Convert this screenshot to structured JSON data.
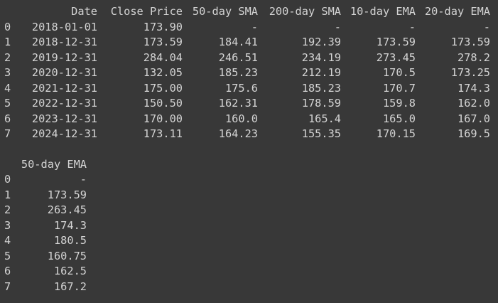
{
  "table1": {
    "columns": [
      "Date",
      "Close Price",
      "50-day SMA",
      "200-day SMA",
      "10-day EMA",
      "20-day EMA"
    ],
    "rows": [
      {
        "index": "0",
        "cells": [
          "2018-01-01",
          "173.90",
          "-",
          "-",
          "-",
          "-"
        ]
      },
      {
        "index": "1",
        "cells": [
          "2018-12-31",
          "173.59",
          "184.41",
          "192.39",
          "173.59",
          "173.59"
        ]
      },
      {
        "index": "2",
        "cells": [
          "2019-12-31",
          "284.04",
          "246.51",
          "234.19",
          "273.45",
          "278.2"
        ]
      },
      {
        "index": "3",
        "cells": [
          "2020-12-31",
          "132.05",
          "185.23",
          "212.19",
          "170.5",
          "173.25"
        ]
      },
      {
        "index": "4",
        "cells": [
          "2021-12-31",
          "175.00",
          "175.6",
          "185.23",
          "170.7",
          "174.3"
        ]
      },
      {
        "index": "5",
        "cells": [
          "2022-12-31",
          "150.50",
          "162.31",
          "178.59",
          "159.8",
          "162.0"
        ]
      },
      {
        "index": "6",
        "cells": [
          "2023-12-31",
          "170.00",
          "160.0",
          "165.4",
          "165.0",
          "167.0"
        ]
      },
      {
        "index": "7",
        "cells": [
          "2024-12-31",
          "173.11",
          "164.23",
          "155.35",
          "170.15",
          "169.5"
        ]
      }
    ]
  },
  "table2": {
    "columns": [
      "50-day EMA"
    ],
    "rows": [
      {
        "index": "0",
        "cells": [
          "-"
        ]
      },
      {
        "index": "1",
        "cells": [
          "173.59"
        ]
      },
      {
        "index": "2",
        "cells": [
          "263.45"
        ]
      },
      {
        "index": "3",
        "cells": [
          "174.3"
        ]
      },
      {
        "index": "4",
        "cells": [
          "180.5"
        ]
      },
      {
        "index": "5",
        "cells": [
          "160.75"
        ]
      },
      {
        "index": "6",
        "cells": [
          "162.5"
        ]
      },
      {
        "index": "7",
        "cells": [
          "167.2"
        ]
      }
    ]
  }
}
